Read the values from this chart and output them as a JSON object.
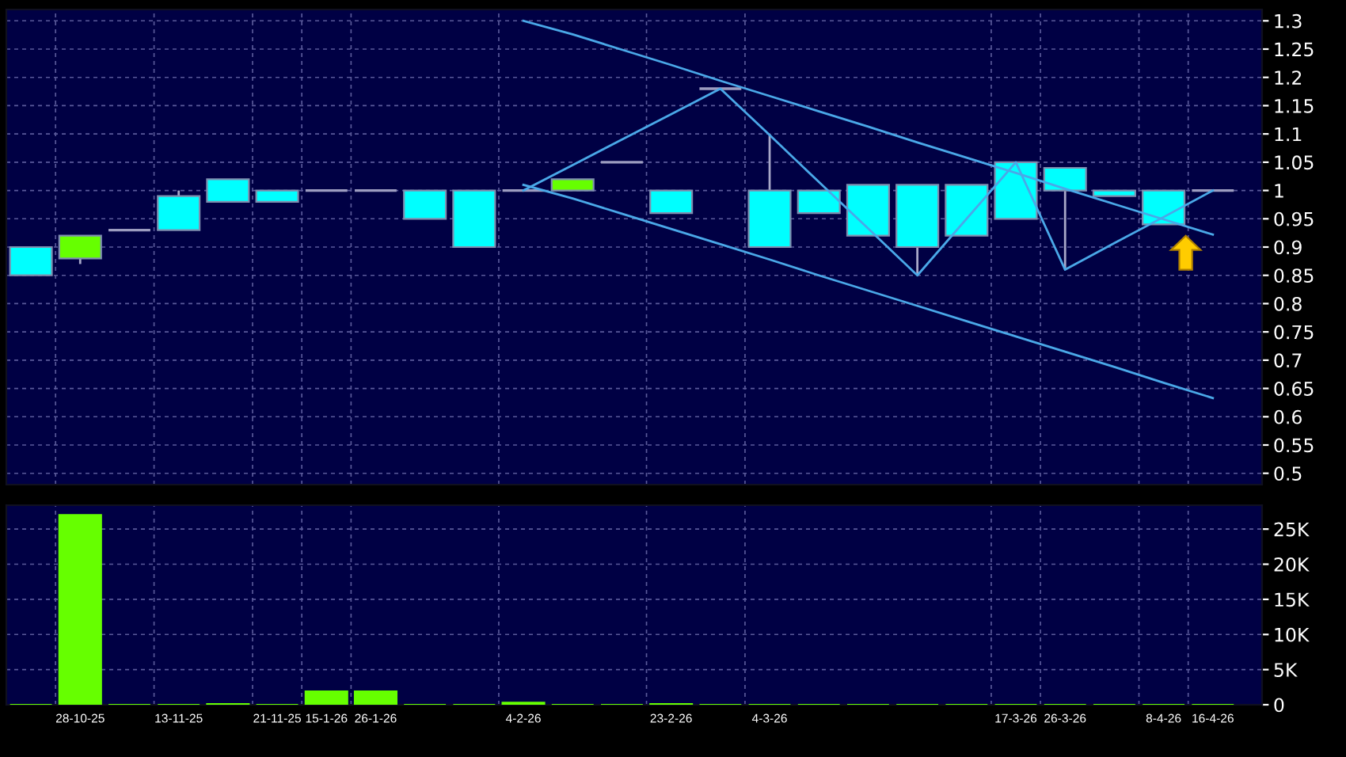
{
  "chart_data": [
    {
      "type": "candlestick",
      "categories": [
        null,
        null,
        null,
        null,
        null,
        null,
        null,
        null,
        null,
        null,
        null,
        null,
        null,
        null,
        null,
        null,
        null,
        null,
        null,
        null,
        null,
        null,
        null,
        null,
        null
      ],
      "ohlc": [
        [
          0.85,
          0.9,
          0.85,
          0.9
        ],
        [
          0.92,
          0.92,
          0.87,
          0.88
        ],
        [
          0.93,
          0.93,
          0.93,
          0.93
        ],
        [
          0.93,
          1,
          0.93,
          0.99
        ],
        [
          0.98,
          1.02,
          0.98,
          1.02
        ],
        [
          0.98,
          1,
          0.98,
          1
        ],
        [
          1,
          1,
          1,
          1
        ],
        [
          1,
          1,
          1,
          1
        ],
        [
          0.95,
          1,
          0.95,
          1
        ],
        [
          0.9,
          1,
          0.9,
          1
        ],
        [
          1,
          1,
          1,
          1
        ],
        [
          1.02,
          1.02,
          1,
          1
        ],
        [
          1.05,
          1.05,
          1.05,
          1.05
        ],
        [
          0.96,
          1,
          0.96,
          1
        ],
        [
          1.18,
          1.18,
          1.18,
          1.18
        ],
        [
          0.9,
          1.1,
          0.9,
          1
        ],
        [
          0.96,
          1,
          0.96,
          1
        ],
        [
          0.92,
          1.01,
          0.92,
          1.01
        ],
        [
          0.9,
          1.01,
          0.85,
          1.01
        ],
        [
          0.92,
          1.01,
          0.92,
          1.01
        ],
        [
          0.95,
          1.05,
          0.95,
          1.05
        ],
        [
          1,
          1.04,
          0.86,
          1.04
        ],
        [
          0.99,
          1,
          0.99,
          1
        ],
        [
          0.94,
          1,
          0.94,
          1
        ],
        [
          1,
          1,
          1,
          1
        ]
      ],
      "colors": [
        "#00ffff",
        "#66ff00",
        "#9c9cc0",
        "#00ffff",
        "#00ffff",
        "#00ffff",
        "#9c9cc0",
        "#9c9cc0",
        "#00ffff",
        "#00ffff",
        "#9c9cc0",
        "#66ff00",
        "#9c9cc0",
        "#00ffff",
        "#9c9cc0",
        "#00ffff",
        "#00ffff",
        "#00ffff",
        "#00ffff",
        "#00ffff",
        "#00ffff",
        "#00ffff",
        "#00ffff",
        "#00ffff",
        "#9c9cc0"
      ],
      "series": [
        {
          "type": "line",
          "color": "#4aa8e8",
          "values": [
            null,
            null,
            null,
            null,
            null,
            null,
            null,
            null,
            null,
            null,
            1,
            1.045,
            1.09,
            1.135,
            1.18,
            1.098,
            1.015,
            0.933,
            0.85,
            0.95,
            1.05,
            0.86,
            0.907,
            0.953,
            1
          ]
        },
        {
          "type": "line",
          "color": "#4aa8e8",
          "values": [
            null,
            null,
            null,
            null,
            null,
            null,
            null,
            null,
            null,
            null,
            1.3,
            1.276,
            1.249,
            1.222,
            1.194,
            1.167,
            1.14,
            1.113,
            1.085,
            1.058,
            1.031,
            1.003,
            0.976,
            0.949,
            0.922
          ]
        },
        {
          "type": "line",
          "color": "#4aa8e8",
          "values": [
            null,
            null,
            null,
            null,
            null,
            null,
            null,
            null,
            null,
            null,
            1.01,
            0.986,
            0.959,
            0.932,
            0.905,
            0.878,
            0.85,
            0.823,
            0.796,
            0.769,
            0.742,
            0.715,
            0.688,
            0.66,
            0.633
          ]
        }
      ],
      "ylim": [
        0.48,
        1.32
      ],
      "yticks": [
        0.5,
        0.55,
        0.6,
        0.65,
        0.7,
        0.75,
        0.8,
        0.85,
        0.9,
        0.95,
        1,
        1.05,
        1.1,
        1.15,
        1.2,
        1.25,
        1.3
      ],
      "tick_labels": "y",
      "grid": true
    },
    {
      "type": "bar",
      "categories": [
        null,
        "28-10-25",
        null,
        "13-11-25",
        null,
        "21-11-25",
        "15-1-26",
        "26-1-26",
        null,
        null,
        "4-2-26",
        null,
        null,
        "23-2-26",
        null,
        "4-3-26",
        null,
        null,
        null,
        null,
        "17-3-26",
        "26-3-26",
        null,
        "8-4-26",
        "16-4-26"
      ],
      "values": [
        0,
        27000,
        0,
        0,
        100,
        0,
        1900,
        1900,
        0,
        0,
        300,
        0,
        0,
        100,
        0,
        0,
        0,
        0,
        0,
        0,
        0,
        0,
        0,
        0,
        0
      ],
      "color": "#66ff00",
      "ylim": [
        0,
        28400
      ],
      "yticks": [
        0,
        {
          "value": 5000,
          "label": "5K"
        },
        {
          "value": 10000,
          "label": "10K"
        },
        {
          "value": 15000,
          "label": "15K"
        },
        {
          "value": 20000,
          "label": "20K"
        },
        {
          "value": 25000,
          "label": "25K"
        }
      ],
      "grid": true
    }
  ]
}
